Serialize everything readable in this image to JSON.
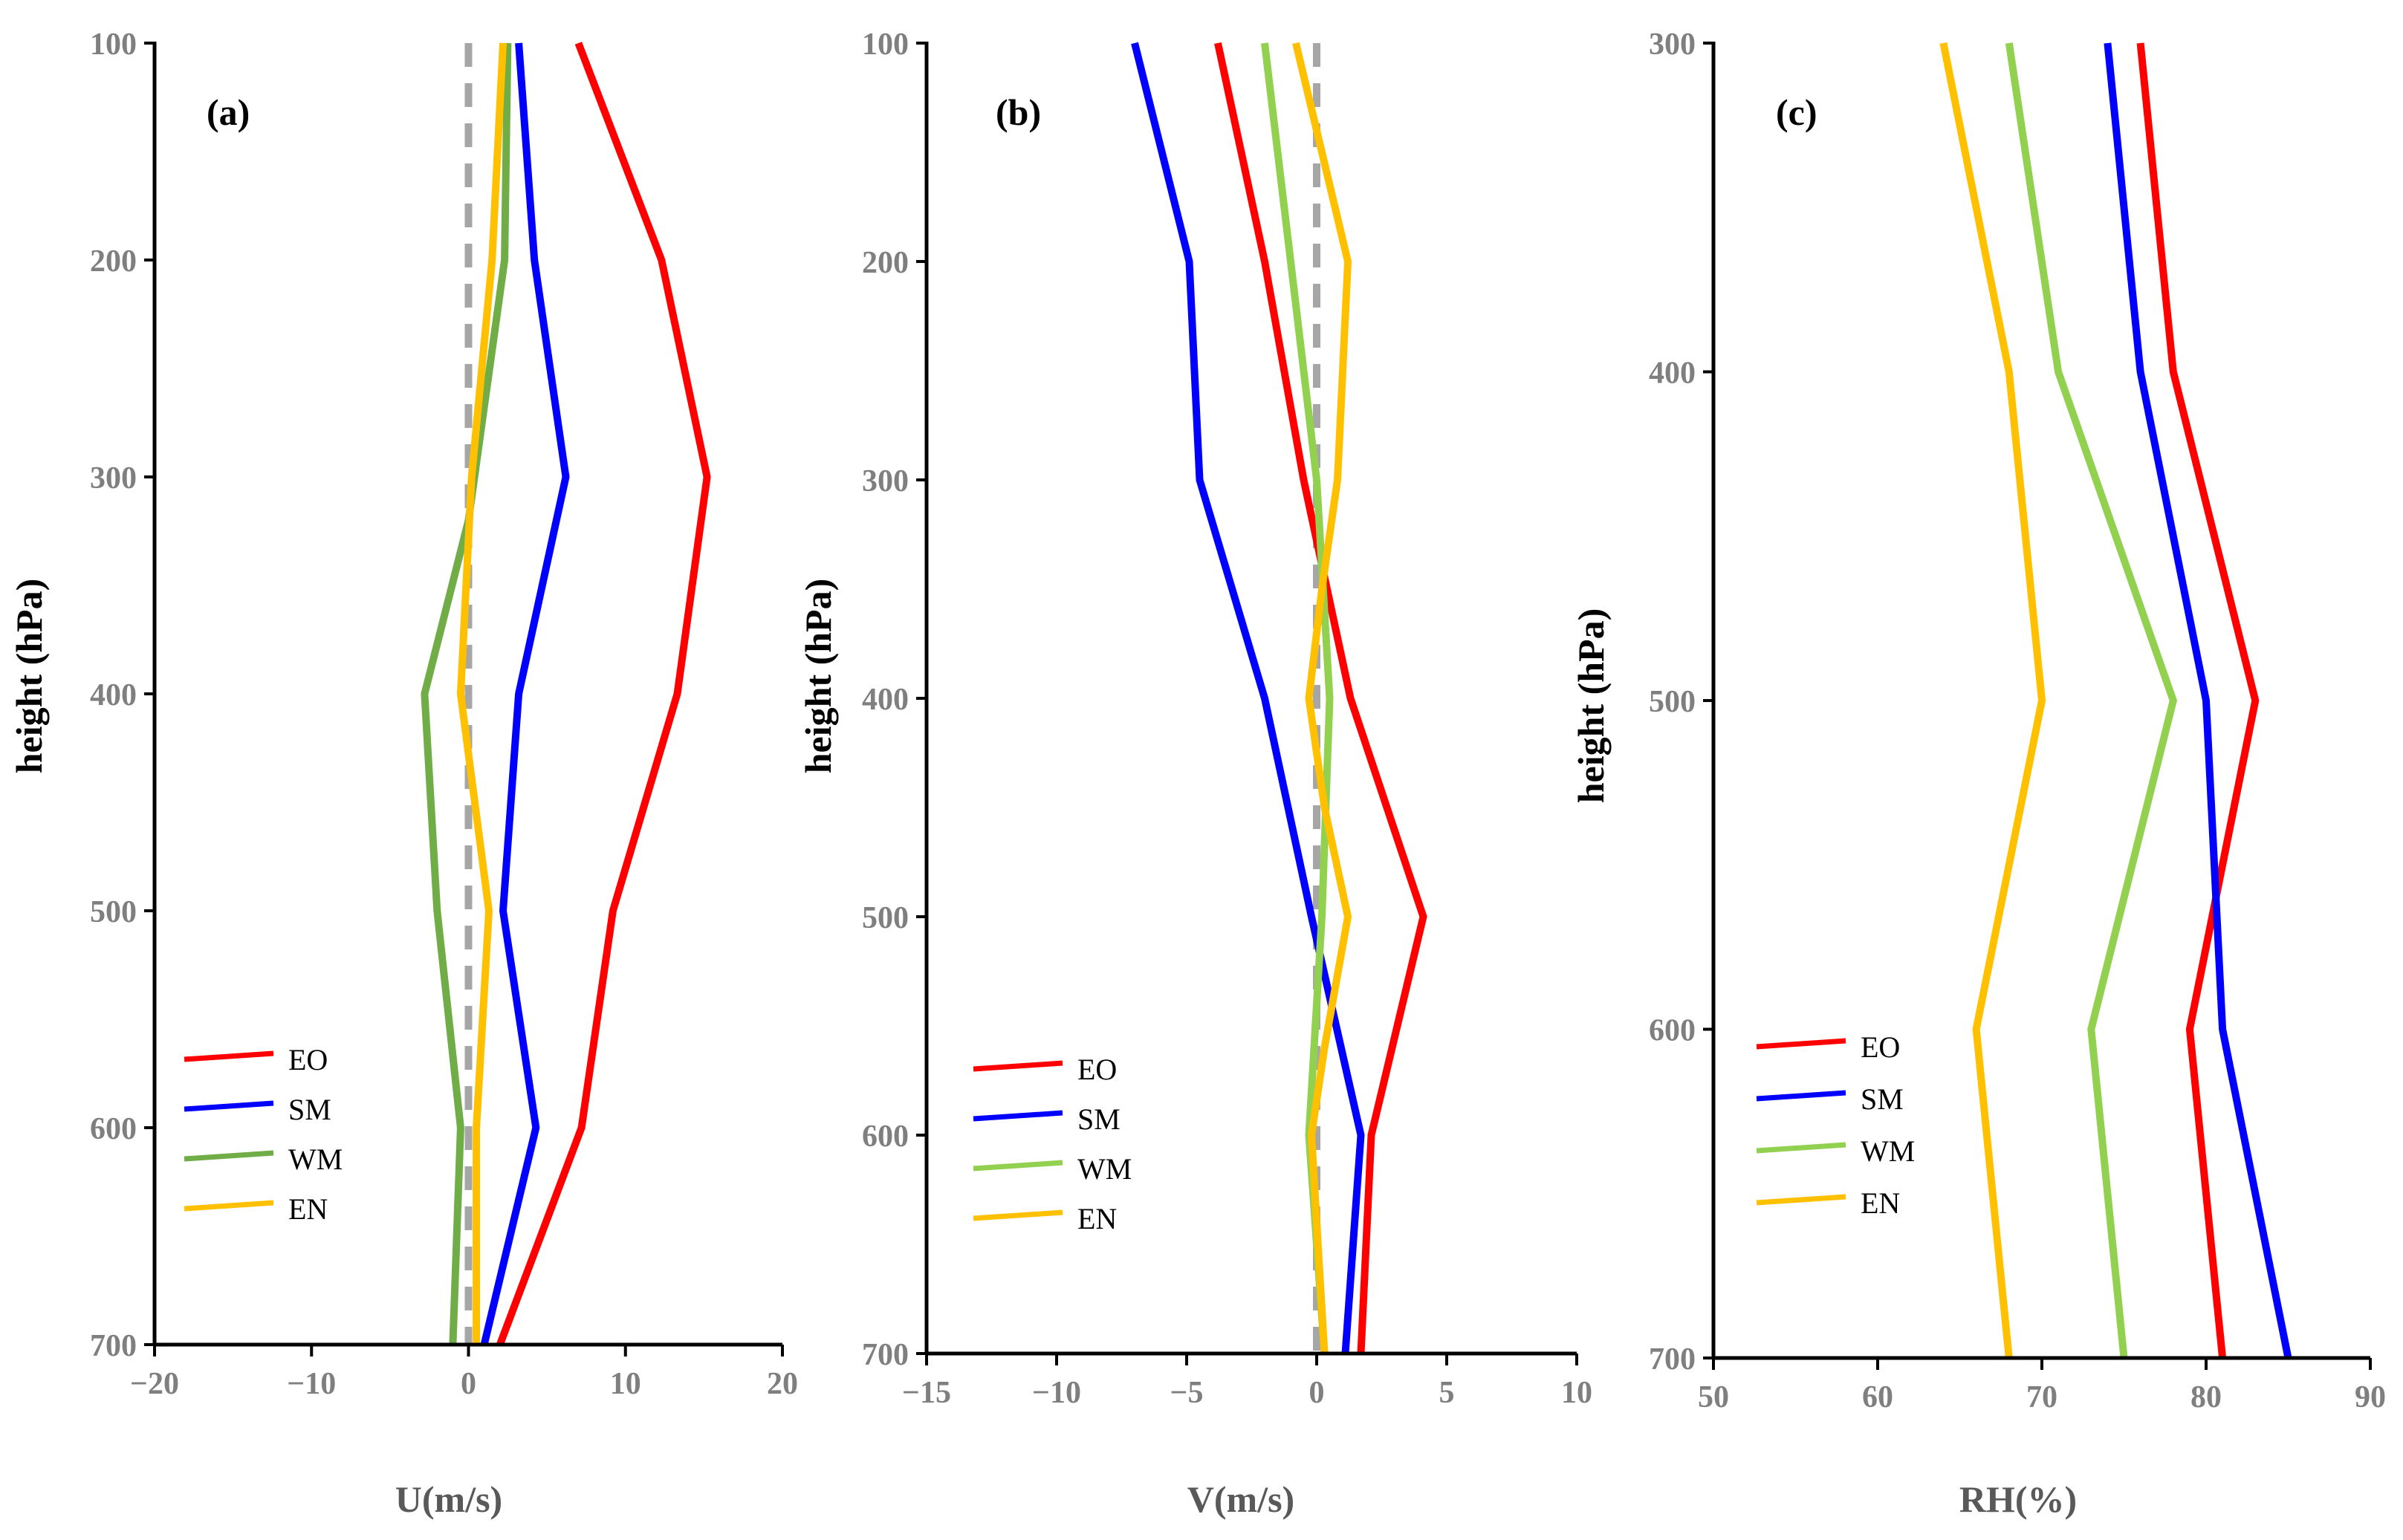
{
  "chart_data": [
    {
      "type": "line",
      "panel_label": "(a)",
      "xlabel": "U(m/s)",
      "ylabel": "height (hPa)",
      "xlim": [
        -20,
        20
      ],
      "xticks": [
        -20,
        -10,
        0,
        10,
        20
      ],
      "ylim": [
        100,
        700
      ],
      "yticks": [
        100,
        200,
        300,
        400,
        500,
        600,
        700
      ],
      "y_inverted": true,
      "reference_line": {
        "x": 0,
        "style": "dashed",
        "color": "#a6a6a6"
      },
      "legend": {
        "placement": "lower-left",
        "entries": [
          "EO",
          "SM",
          "WM",
          "EN"
        ]
      },
      "series": [
        {
          "name": "EO",
          "color": "#ff0000",
          "points": [
            [
              7,
              100
            ],
            [
              12.3,
              200
            ],
            [
              15.2,
              300
            ],
            [
              13.3,
              400
            ],
            [
              9.2,
              500
            ],
            [
              7.2,
              600
            ],
            [
              2,
              700
            ]
          ]
        },
        {
          "name": "SM",
          "color": "#0000ff",
          "points": [
            [
              3.2,
              100
            ],
            [
              4.2,
              200
            ],
            [
              6.2,
              300
            ],
            [
              3.2,
              400
            ],
            [
              2.2,
              500
            ],
            [
              4.3,
              600
            ],
            [
              1,
              700
            ]
          ]
        },
        {
          "name": "WM",
          "color": "#70ad47",
          "points": [
            [
              2.5,
              100
            ],
            [
              2.3,
              200
            ],
            [
              0,
              320
            ],
            [
              -2.8,
              400
            ],
            [
              -2,
              500
            ],
            [
              -0.5,
              600
            ],
            [
              -1,
              700
            ]
          ]
        },
        {
          "name": "EN",
          "color": "#ffc000",
          "points": [
            [
              2.2,
              100
            ],
            [
              1.5,
              200
            ],
            [
              0.2,
              300
            ],
            [
              -0.5,
              400
            ],
            [
              1.3,
              500
            ],
            [
              0.5,
              600
            ],
            [
              0.5,
              700
            ]
          ]
        }
      ]
    },
    {
      "type": "line",
      "panel_label": "(b)",
      "xlabel": "V(m/s)",
      "ylabel": "height (hPa)",
      "xlim": [
        -15,
        10
      ],
      "xticks": [
        -15,
        -10,
        -5,
        0,
        5,
        10
      ],
      "ylim": [
        100,
        700
      ],
      "yticks": [
        100,
        200,
        300,
        400,
        500,
        600,
        700
      ],
      "y_inverted": true,
      "reference_line": {
        "x": 0,
        "style": "dashed",
        "color": "#a6a6a6"
      },
      "legend": {
        "placement": "lower-left",
        "entries": [
          "EO",
          "SM",
          "WM",
          "EN"
        ]
      },
      "series": [
        {
          "name": "EO",
          "color": "#ff0000",
          "points": [
            [
              -3.8,
              100
            ],
            [
              -2,
              200
            ],
            [
              -0.5,
              300
            ],
            [
              1.3,
              400
            ],
            [
              4.1,
              500
            ],
            [
              2.1,
              600
            ],
            [
              1.7,
              700
            ]
          ]
        },
        {
          "name": "SM",
          "color": "#0000ff",
          "points": [
            [
              -7,
              100
            ],
            [
              -4.9,
              200
            ],
            [
              -4.5,
              300
            ],
            [
              -2,
              400
            ],
            [
              -0.2,
              500
            ],
            [
              1.7,
              600
            ],
            [
              1.1,
              700
            ]
          ]
        },
        {
          "name": "WM",
          "color": "#92d050",
          "points": [
            [
              -2,
              100
            ],
            [
              -1,
              200
            ],
            [
              0,
              300
            ],
            [
              0.5,
              400
            ],
            [
              0.2,
              500
            ],
            [
              -0.3,
              600
            ],
            [
              0.3,
              700
            ]
          ]
        },
        {
          "name": "EN",
          "color": "#ffc000",
          "points": [
            [
              -0.8,
              100
            ],
            [
              0.2,
              150
            ],
            [
              1.2,
              200
            ],
            [
              0.8,
              300
            ],
            [
              0.2,
              350
            ],
            [
              -0.3,
              400
            ],
            [
              0.3,
              450
            ],
            [
              1.2,
              500
            ],
            [
              0.3,
              560
            ],
            [
              -0.2,
              600
            ],
            [
              0.3,
              700
            ]
          ]
        }
      ]
    },
    {
      "type": "line",
      "panel_label": "(c)",
      "xlabel": "RH(%)",
      "ylabel": "height (hPa)",
      "xlim": [
        50,
        90
      ],
      "xticks": [
        50,
        60,
        70,
        80,
        90
      ],
      "ylim": [
        300,
        700
      ],
      "yticks": [
        300,
        400,
        500,
        600,
        700
      ],
      "y_inverted": true,
      "legend": {
        "placement": "lower-left",
        "entries": [
          "EO",
          "SM",
          "WM",
          "EN"
        ]
      },
      "series": [
        {
          "name": "EO",
          "color": "#ff0000",
          "points": [
            [
              76,
              300
            ],
            [
              78,
              400
            ],
            [
              83,
              500
            ],
            [
              79,
              600
            ],
            [
              81,
              700
            ]
          ]
        },
        {
          "name": "SM",
          "color": "#0000ff",
          "points": [
            [
              74,
              300
            ],
            [
              76,
              400
            ],
            [
              80,
              500
            ],
            [
              81,
              600
            ],
            [
              85,
              700
            ]
          ]
        },
        {
          "name": "WM",
          "color": "#92d050",
          "points": [
            [
              68,
              300
            ],
            [
              71,
              400
            ],
            [
              78,
              500
            ],
            [
              73,
              600
            ],
            [
              75,
              700
            ]
          ]
        },
        {
          "name": "EN",
          "color": "#ffc000",
          "points": [
            [
              64,
              300
            ],
            [
              68,
              400
            ],
            [
              70,
              500
            ],
            [
              66,
              600
            ],
            [
              68,
              700
            ]
          ]
        }
      ]
    }
  ]
}
